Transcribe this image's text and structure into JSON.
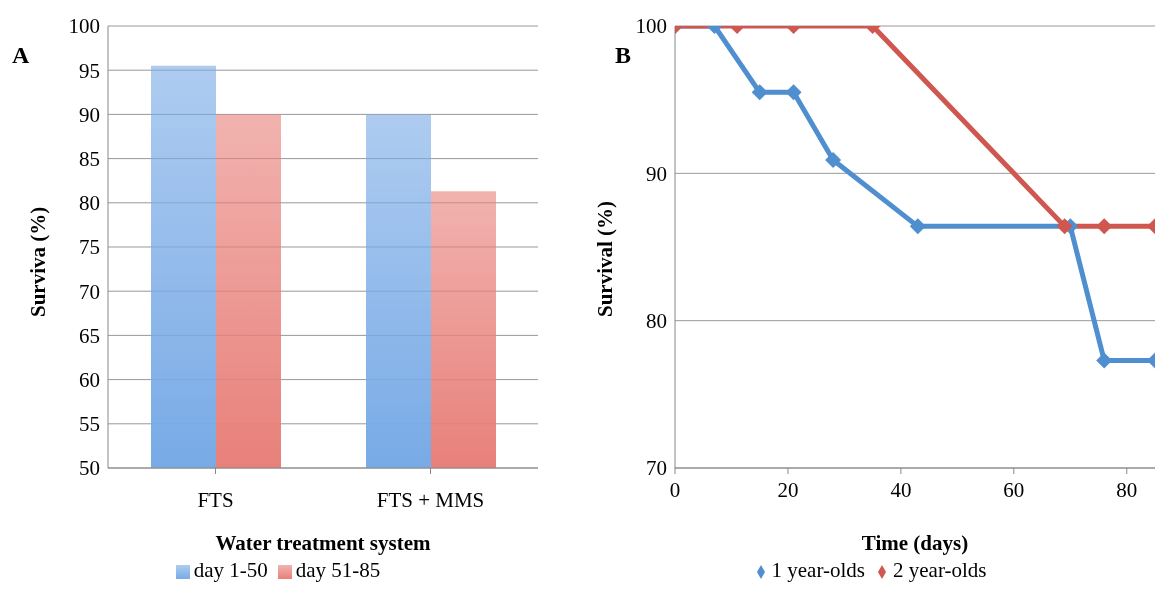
{
  "chart_data": [
    {
      "type": "bar",
      "title": "A",
      "xlabel": "Water treatment system",
      "ylabel": "Surviva (%)",
      "categories": [
        "FTS",
        "FTS + MMS"
      ],
      "series": [
        {
          "name": "day 1-50",
          "color": "#78aae6",
          "values": [
            95.5,
            90
          ]
        },
        {
          "name": "day 51-85",
          "color": "#e8807a",
          "values": [
            90,
            81.3
          ]
        }
      ],
      "ylim": [
        50,
        100
      ],
      "yticks": [
        50,
        55,
        60,
        65,
        70,
        75,
        80,
        85,
        90,
        95,
        100
      ],
      "grid": "y",
      "legend": "bottom"
    },
    {
      "type": "line",
      "title": "B",
      "xlabel": "Time (days)",
      "ylabel": "Survival (%)",
      "series": [
        {
          "name": "1 year-olds",
          "color": "#4f8fcf",
          "x": [
            0,
            7,
            15,
            21,
            28,
            43,
            70,
            76,
            85
          ],
          "values": [
            100,
            100,
            95.5,
            95.5,
            90.9,
            86.4,
            86.4,
            77.3,
            77.3
          ]
        },
        {
          "name": "2 year-olds",
          "color": "#d0574f",
          "x": [
            0,
            11,
            21,
            35,
            69,
            76,
            85
          ],
          "values": [
            100,
            100,
            100,
            100,
            86.4,
            86.4,
            86.4
          ]
        }
      ],
      "xlim": [
        0,
        85
      ],
      "xticks": [
        0,
        20,
        40,
        60,
        80
      ],
      "ylim": [
        70,
        100
      ],
      "yticks": [
        70,
        80,
        90,
        100
      ],
      "grid": "y",
      "legend": "bottom",
      "marker": "diamond",
      "line_style": "solid"
    }
  ]
}
